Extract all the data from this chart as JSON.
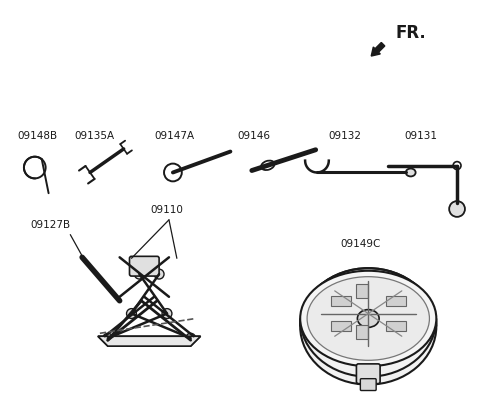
{
  "bg_color": "#ffffff",
  "fr_label": "FR.",
  "line_color": "#1a1a1a",
  "text_color": "#1a1a1a",
  "font_size": 7.5,
  "parts_row1": [
    "09148B",
    "09135A",
    "09147A",
    "09146",
    "09132",
    "09131"
  ],
  "parts_row2": [
    "09110",
    "09127B",
    "09149C"
  ]
}
